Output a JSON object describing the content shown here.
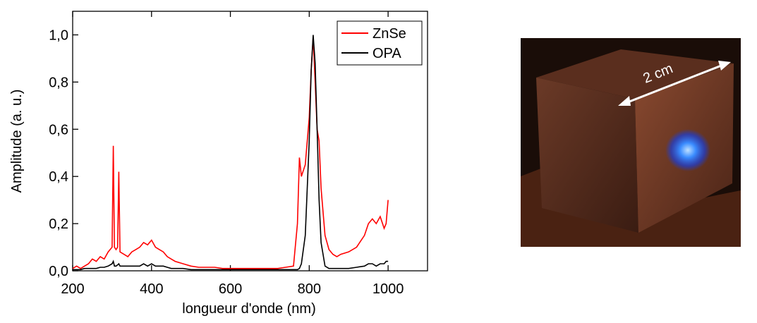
{
  "chart_data": {
    "type": "line",
    "xlabel": "longueur d'onde (nm)",
    "ylabel": "Amplitude (a. u.)",
    "x": [
      200,
      210,
      220,
      230,
      240,
      250,
      260,
      270,
      280,
      290,
      300,
      303,
      306,
      310,
      314,
      317,
      320,
      330,
      340,
      350,
      360,
      370,
      380,
      390,
      400,
      410,
      420,
      430,
      440,
      450,
      460,
      480,
      500,
      520,
      540,
      560,
      580,
      600,
      620,
      640,
      660,
      680,
      700,
      720,
      740,
      760,
      770,
      775,
      780,
      790,
      800,
      805,
      810,
      815,
      820,
      825,
      830,
      840,
      850,
      860,
      870,
      880,
      900,
      920,
      940,
      950,
      960,
      970,
      980,
      990,
      995,
      1000
    ],
    "series": [
      {
        "name": "ZnSe",
        "color": "#ff0000",
        "values": [
          0.01,
          0.02,
          0.01,
          0.02,
          0.03,
          0.05,
          0.04,
          0.06,
          0.05,
          0.08,
          0.1,
          0.53,
          0.1,
          0.09,
          0.1,
          0.42,
          0.08,
          0.07,
          0.06,
          0.08,
          0.09,
          0.1,
          0.12,
          0.11,
          0.13,
          0.1,
          0.09,
          0.08,
          0.06,
          0.05,
          0.04,
          0.03,
          0.02,
          0.015,
          0.015,
          0.015,
          0.01,
          0.01,
          0.01,
          0.01,
          0.01,
          0.01,
          0.01,
          0.01,
          0.015,
          0.02,
          0.2,
          0.48,
          0.4,
          0.45,
          0.65,
          0.85,
          0.99,
          0.8,
          0.6,
          0.55,
          0.35,
          0.15,
          0.09,
          0.07,
          0.06,
          0.07,
          0.08,
          0.1,
          0.15,
          0.2,
          0.22,
          0.2,
          0.23,
          0.18,
          0.2,
          0.3
        ]
      },
      {
        "name": "OPA",
        "color": "#000000",
        "values": [
          0.005,
          0.005,
          0.005,
          0.01,
          0.01,
          0.01,
          0.01,
          0.015,
          0.015,
          0.02,
          0.03,
          0.04,
          0.02,
          0.02,
          0.025,
          0.03,
          0.02,
          0.02,
          0.02,
          0.02,
          0.02,
          0.02,
          0.03,
          0.02,
          0.03,
          0.02,
          0.02,
          0.02,
          0.015,
          0.01,
          0.01,
          0.01,
          0.005,
          0.005,
          0.005,
          0.005,
          0.005,
          0.005,
          0.005,
          0.005,
          0.005,
          0.005,
          0.005,
          0.005,
          0.005,
          0.005,
          0.005,
          0.01,
          0.03,
          0.15,
          0.55,
          0.85,
          1.0,
          0.88,
          0.6,
          0.3,
          0.12,
          0.02,
          0.01,
          0.01,
          0.01,
          0.01,
          0.01,
          0.015,
          0.02,
          0.03,
          0.03,
          0.02,
          0.03,
          0.03,
          0.04,
          0.04
        ]
      }
    ],
    "xlim": [
      200,
      1100
    ],
    "ylim": [
      0,
      1.1
    ],
    "xticks": [
      200,
      400,
      600,
      800,
      1000
    ],
    "yticks": [
      {
        "value": 0,
        "label": "0,0"
      },
      {
        "value": 0.2,
        "label": "0,2"
      },
      {
        "value": 0.4,
        "label": "0,4"
      },
      {
        "value": 0.6,
        "label": "0,6"
      },
      {
        "value": 0.8,
        "label": "0,8"
      },
      {
        "value": 1.0,
        "label": "1,0"
      }
    ],
    "legend": "upper right",
    "grid": false
  },
  "photo": {
    "annotation": "2 cm"
  }
}
